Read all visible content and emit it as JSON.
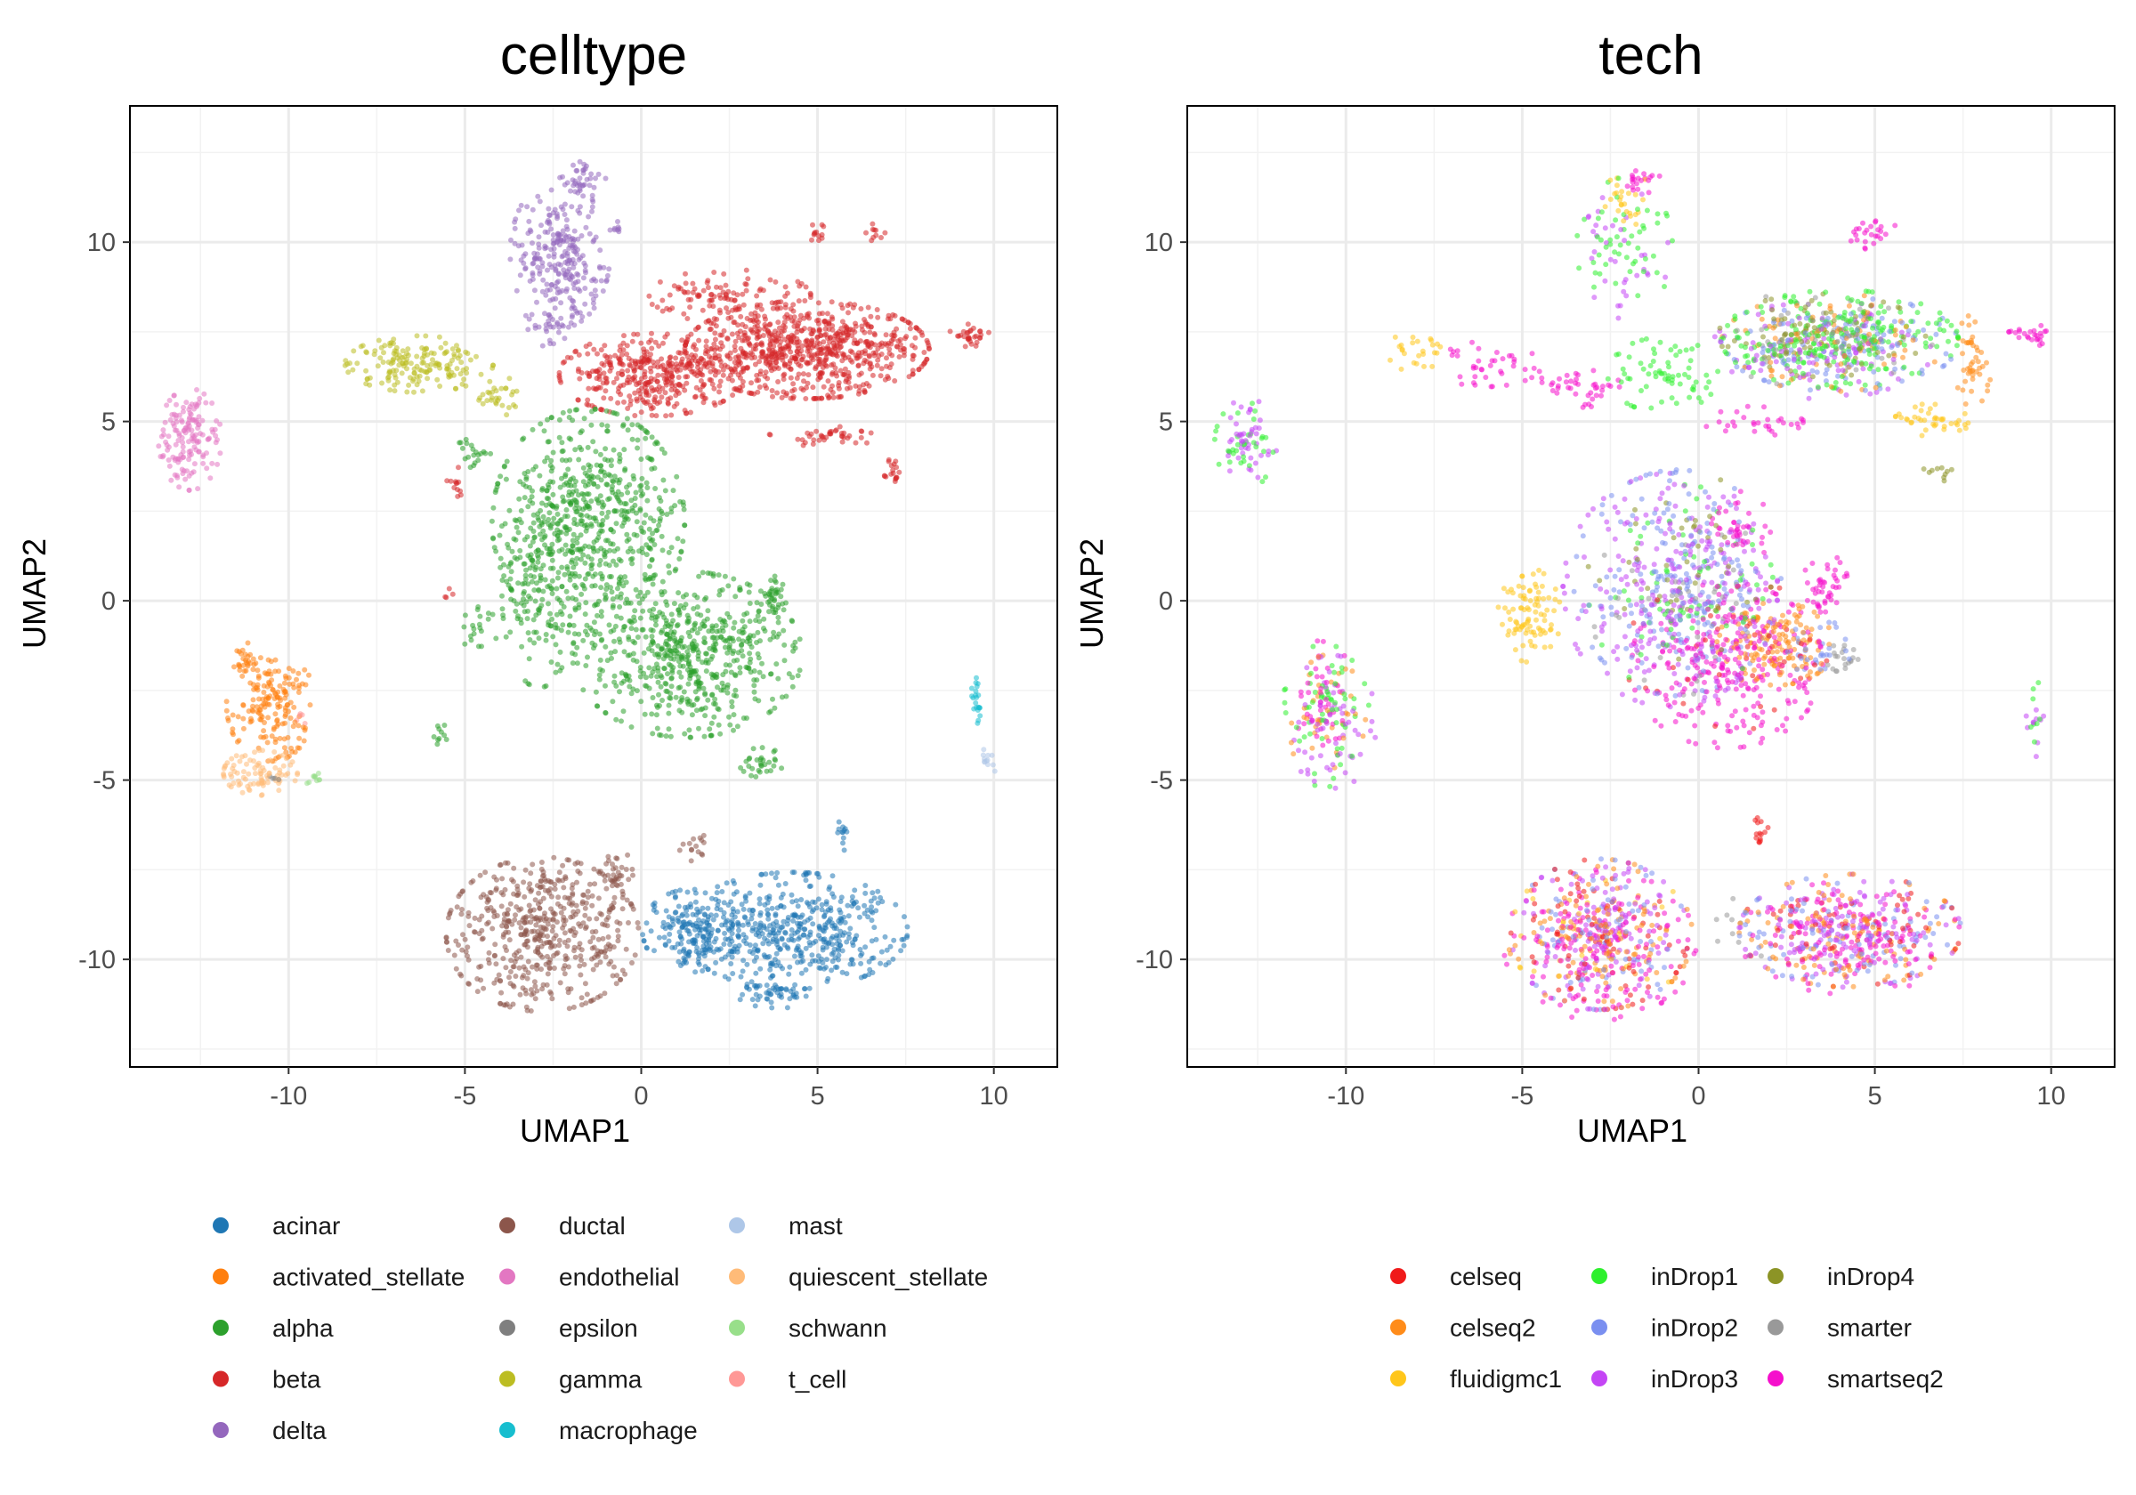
{
  "chart_data": [
    {
      "type": "scatter",
      "title": "celltype",
      "xlabel": "UMAP1",
      "ylabel": "UMAP2",
      "xlim": [
        -14.5,
        11.8
      ],
      "ylim": [
        -13.0,
        13.8
      ],
      "xticks": [
        -10,
        -5,
        0,
        5,
        10
      ],
      "yticks": [
        -10,
        -5,
        0,
        5,
        10
      ],
      "xtick_labels": [
        "-10",
        "-5",
        "0",
        "5",
        "10"
      ],
      "ytick_labels": [
        "-10",
        "-5",
        "0",
        "5",
        "10"
      ],
      "grid": true,
      "legend_position": "bottom",
      "legend_columns": 3,
      "series": [
        {
          "name": "acinar",
          "color": "#1f77b4",
          "clusters": [
            {
              "cx": 4.3,
              "cy": -9.2,
              "rx": 3.1,
              "ry": 1.55,
              "n": 500
            },
            {
              "cx": 1.4,
              "cy": -9.2,
              "rx": 1.3,
              "ry": 1.1,
              "n": 160
            },
            {
              "cx": 5.7,
              "cy": -6.5,
              "rx": 0.2,
              "ry": 0.45,
              "n": 12
            },
            {
              "cx": 3.8,
              "cy": -11.0,
              "rx": 1.0,
              "ry": 0.35,
              "n": 40
            }
          ]
        },
        {
          "name": "activated_stellate",
          "color": "#ff7f0e",
          "clusters": [
            {
              "cx": -10.5,
              "cy": -2.9,
              "rx": 1.2,
              "ry": 1.5,
              "n": 170
            },
            {
              "cx": -11.2,
              "cy": -1.6,
              "rx": 0.4,
              "ry": 0.5,
              "n": 25
            }
          ]
        },
        {
          "name": "alpha",
          "color": "#2ca02c",
          "clusters": [
            {
              "cx": -1.5,
              "cy": 2.2,
              "rx": 2.6,
              "ry": 3.0,
              "n": 650
            },
            {
              "cx": 1.3,
              "cy": -1.5,
              "rx": 3.1,
              "ry": 2.2,
              "n": 600
            },
            {
              "cx": -2.9,
              "cy": 0.2,
              "rx": 1.0,
              "ry": 2.5,
              "n": 130
            },
            {
              "cx": 3.7,
              "cy": -0.1,
              "rx": 0.4,
              "ry": 0.8,
              "n": 40
            },
            {
              "cx": 3.4,
              "cy": -4.5,
              "rx": 0.6,
              "ry": 0.4,
              "n": 30
            },
            {
              "cx": -4.6,
              "cy": -0.8,
              "rx": 0.5,
              "ry": 0.6,
              "n": 20
            },
            {
              "cx": -4.8,
              "cy": 4.1,
              "rx": 0.5,
              "ry": 0.4,
              "n": 20
            },
            {
              "cx": -5.7,
              "cy": -3.7,
              "rx": 0.25,
              "ry": 0.3,
              "n": 10
            }
          ]
        },
        {
          "name": "beta",
          "color": "#d62728",
          "clusters": [
            {
              "cx": 4.7,
              "cy": 7.0,
              "rx": 3.3,
              "ry": 1.3,
              "n": 750
            },
            {
              "cx": 0.3,
              "cy": 6.3,
              "rx": 2.5,
              "ry": 1.1,
              "n": 380
            },
            {
              "cx": 2.5,
              "cy": 8.5,
              "rx": 2.2,
              "ry": 0.7,
              "n": 100
            },
            {
              "cx": 5.2,
              "cy": 4.6,
              "rx": 1.5,
              "ry": 0.3,
              "n": 40
            },
            {
              "cx": 9.3,
              "cy": 7.4,
              "rx": 0.55,
              "ry": 0.3,
              "n": 30
            },
            {
              "cx": 5.0,
              "cy": 10.3,
              "rx": 0.4,
              "ry": 0.3,
              "n": 12
            },
            {
              "cx": 6.6,
              "cy": 10.3,
              "rx": 0.3,
              "ry": 0.3,
              "n": 10
            },
            {
              "cx": 7.1,
              "cy": 3.6,
              "rx": 0.3,
              "ry": 0.35,
              "n": 18
            },
            {
              "cx": -5.2,
              "cy": 3.3,
              "rx": 0.3,
              "ry": 0.4,
              "n": 12
            },
            {
              "cx": -5.5,
              "cy": 0.2,
              "rx": 0.15,
              "ry": 0.2,
              "n": 4
            }
          ]
        },
        {
          "name": "delta",
          "color": "#9467bd",
          "clusters": [
            {
              "cx": -2.3,
              "cy": 9.7,
              "rx": 1.35,
              "ry": 2.0,
              "n": 260
            },
            {
              "cx": -1.5,
              "cy": 11.8,
              "rx": 0.7,
              "ry": 0.5,
              "n": 30
            },
            {
              "cx": -2.5,
              "cy": 7.7,
              "rx": 0.8,
              "ry": 0.6,
              "n": 30
            },
            {
              "cx": -0.7,
              "cy": 10.4,
              "rx": 0.25,
              "ry": 0.2,
              "n": 8
            }
          ]
        },
        {
          "name": "ductal",
          "color": "#8c564b",
          "clusters": [
            {
              "cx": -2.8,
              "cy": -9.3,
              "rx": 2.6,
              "ry": 2.05,
              "n": 520
            },
            {
              "cx": -0.7,
              "cy": -7.6,
              "rx": 0.5,
              "ry": 0.6,
              "n": 30
            },
            {
              "cx": 1.5,
              "cy": -6.8,
              "rx": 0.4,
              "ry": 0.6,
              "n": 15
            }
          ]
        },
        {
          "name": "endothelial",
          "color": "#e377c2",
          "clusters": [
            {
              "cx": -12.8,
              "cy": 4.5,
              "rx": 0.85,
              "ry": 1.35,
              "n": 150
            }
          ]
        },
        {
          "name": "epsilon",
          "color": "#7f7f7f",
          "clusters": [
            {
              "cx": -10.4,
              "cy": -4.9,
              "rx": 0.2,
              "ry": 0.2,
              "n": 4
            }
          ]
        },
        {
          "name": "gamma",
          "color": "#bcbd22",
          "clusters": [
            {
              "cx": -6.3,
              "cy": 6.6,
              "rx": 2.0,
              "ry": 0.75,
              "n": 170
            },
            {
              "cx": -4.0,
              "cy": 5.7,
              "rx": 0.8,
              "ry": 0.5,
              "n": 30
            }
          ]
        },
        {
          "name": "macrophage",
          "color": "#17becf",
          "clusters": [
            {
              "cx": 9.5,
              "cy": -2.7,
              "rx": 0.15,
              "ry": 0.7,
              "n": 22
            }
          ]
        },
        {
          "name": "mast",
          "color": "#aec7e8",
          "clusters": [
            {
              "cx": 9.8,
              "cy": -4.5,
              "rx": 0.3,
              "ry": 0.35,
              "n": 12
            }
          ]
        },
        {
          "name": "quiescent_stellate",
          "color": "#ffbb78",
          "clusters": [
            {
              "cx": -10.8,
              "cy": -4.8,
              "rx": 1.0,
              "ry": 0.6,
              "n": 90
            }
          ]
        },
        {
          "name": "schwann",
          "color": "#98df8a",
          "clusters": [
            {
              "cx": -9.3,
              "cy": -5.0,
              "rx": 0.3,
              "ry": 0.25,
              "n": 10
            }
          ]
        },
        {
          "name": "t_cell",
          "color": "#ff9896",
          "clusters": [
            {
              "cx": -9.6,
              "cy": -3.3,
              "rx": 0.2,
              "ry": 0.2,
              "n": 5
            }
          ]
        }
      ]
    },
    {
      "type": "scatter",
      "title": "tech",
      "xlabel": "UMAP1",
      "ylabel": "UMAP2",
      "xlim": [
        -14.5,
        11.8
      ],
      "ylim": [
        -13.0,
        13.8
      ],
      "xticks": [
        -10,
        -5,
        0,
        5,
        10
      ],
      "yticks": [
        -10,
        -5,
        0,
        5,
        10
      ],
      "xtick_labels": [
        "-10",
        "-5",
        "0",
        "5",
        "10"
      ],
      "ytick_labels": [
        "-10",
        "-5",
        "0",
        "5",
        "10"
      ],
      "grid": true,
      "legend_position": "bottom",
      "legend_columns": 3,
      "series": [
        {
          "name": "celseq",
          "color": "#f01a1a",
          "clusters": [
            {
              "cx": 1.7,
              "cy": -6.5,
              "rx": 0.3,
              "ry": 0.5,
              "n": 14
            },
            {
              "cx": -2.8,
              "cy": -9.3,
              "rx": 2.4,
              "ry": 2.0,
              "n": 80
            },
            {
              "cx": 4.3,
              "cy": -9.2,
              "rx": 3.0,
              "ry": 1.5,
              "n": 60
            },
            {
              "cx": 1.0,
              "cy": -1.5,
              "rx": 3.0,
              "ry": 2.0,
              "n": 40
            }
          ]
        },
        {
          "name": "celseq2",
          "color": "#ff8c1a",
          "clusters": [
            {
              "cx": 2.2,
              "cy": -1.2,
              "rx": 1.6,
              "ry": 1.1,
              "n": 140
            },
            {
              "cx": -2.8,
              "cy": -9.3,
              "rx": 2.5,
              "ry": 2.0,
              "n": 120
            },
            {
              "cx": 4.3,
              "cy": -9.2,
              "rx": 3.0,
              "ry": 1.5,
              "n": 110
            },
            {
              "cx": 7.8,
              "cy": 6.6,
              "rx": 0.5,
              "ry": 1.4,
              "n": 45
            },
            {
              "cx": -10.6,
              "cy": -3.2,
              "rx": 1.1,
              "ry": 1.6,
              "n": 40
            },
            {
              "cx": 3.8,
              "cy": 7.2,
              "rx": 3.0,
              "ry": 1.3,
              "n": 80
            }
          ]
        },
        {
          "name": "fluidigmc1",
          "color": "#ffc61a",
          "clusters": [
            {
              "cx": -4.8,
              "cy": -0.4,
              "rx": 0.85,
              "ry": 1.25,
              "n": 90
            },
            {
              "cx": 6.6,
              "cy": 5.0,
              "rx": 1.0,
              "ry": 0.5,
              "n": 40
            },
            {
              "cx": -8.0,
              "cy": 7.0,
              "rx": 0.8,
              "ry": 0.6,
              "n": 25
            },
            {
              "cx": -2.0,
              "cy": 11.2,
              "rx": 0.7,
              "ry": 0.7,
              "n": 25
            },
            {
              "cx": -2.8,
              "cy": -9.3,
              "rx": 2.4,
              "ry": 2.0,
              "n": 30
            }
          ]
        },
        {
          "name": "inDrop1",
          "color": "#2ef02e",
          "clusters": [
            {
              "cx": 4.0,
              "cy": 7.3,
              "rx": 3.2,
              "ry": 1.3,
              "n": 230
            },
            {
              "cx": -1.0,
              "cy": 6.3,
              "rx": 1.5,
              "ry": 1.0,
              "n": 70
            },
            {
              "cx": -10.6,
              "cy": -3.2,
              "rx": 1.2,
              "ry": 1.9,
              "n": 60
            },
            {
              "cx": -12.9,
              "cy": 4.3,
              "rx": 0.8,
              "ry": 1.2,
              "n": 35
            },
            {
              "cx": -2.1,
              "cy": 9.8,
              "rx": 1.3,
              "ry": 1.9,
              "n": 50
            },
            {
              "cx": -0.5,
              "cy": 0.3,
              "rx": 2.5,
              "ry": 2.8,
              "n": 70
            },
            {
              "cx": 9.5,
              "cy": -3.0,
              "rx": 0.2,
              "ry": 0.9,
              "n": 8
            }
          ]
        },
        {
          "name": "inDrop2",
          "color": "#7a8ff0",
          "clusters": [
            {
              "cx": -0.6,
              "cy": 0.5,
              "rx": 2.8,
              "ry": 3.0,
              "n": 200
            },
            {
              "cx": 4.0,
              "cy": 7.2,
              "rx": 3.2,
              "ry": 1.3,
              "n": 130
            },
            {
              "cx": 4.3,
              "cy": -9.2,
              "rx": 3.0,
              "ry": 1.5,
              "n": 90
            },
            {
              "cx": -2.8,
              "cy": -9.3,
              "rx": 2.4,
              "ry": 2.0,
              "n": 80
            },
            {
              "cx": 3.3,
              "cy": -1.3,
              "rx": 1.0,
              "ry": 0.8,
              "n": 30
            }
          ]
        },
        {
          "name": "inDrop3",
          "color": "#c445f5",
          "clusters": [
            {
              "cx": -0.8,
              "cy": 0.3,
              "rx": 2.9,
              "ry": 3.1,
              "n": 260
            },
            {
              "cx": 4.3,
              "cy": -9.2,
              "rx": 3.0,
              "ry": 1.5,
              "n": 130
            },
            {
              "cx": -2.8,
              "cy": -9.3,
              "rx": 2.4,
              "ry": 2.0,
              "n": 110
            },
            {
              "cx": -12.8,
              "cy": 4.4,
              "rx": 0.8,
              "ry": 1.2,
              "n": 45
            },
            {
              "cx": -10.4,
              "cy": -3.4,
              "rx": 1.2,
              "ry": 1.8,
              "n": 60
            },
            {
              "cx": 3.5,
              "cy": 7.0,
              "rx": 3.0,
              "ry": 1.3,
              "n": 100
            },
            {
              "cx": -2.1,
              "cy": 9.6,
              "rx": 1.2,
              "ry": 1.8,
              "n": 35
            },
            {
              "cx": 9.6,
              "cy": -3.5,
              "rx": 0.3,
              "ry": 1.2,
              "n": 10
            }
          ]
        },
        {
          "name": "inDrop4",
          "color": "#8c9426",
          "clusters": [
            {
              "cx": 3.5,
              "cy": 7.4,
              "rx": 2.8,
              "ry": 1.1,
              "n": 90
            },
            {
              "cx": -0.5,
              "cy": 1.0,
              "rx": 2.5,
              "ry": 2.5,
              "n": 50
            },
            {
              "cx": 6.8,
              "cy": 3.6,
              "rx": 0.4,
              "ry": 0.35,
              "n": 10
            }
          ]
        },
        {
          "name": "smarter",
          "color": "#999999",
          "clusters": [
            {
              "cx": 4.0,
              "cy": -1.6,
              "rx": 0.5,
              "ry": 0.35,
              "n": 20
            },
            {
              "cx": 3.5,
              "cy": 7.3,
              "rx": 3.0,
              "ry": 1.3,
              "n": 50
            },
            {
              "cx": -0.5,
              "cy": 0.0,
              "rx": 2.5,
              "ry": 2.5,
              "n": 40
            },
            {
              "cx": 1.0,
              "cy": -9.2,
              "rx": 1.0,
              "ry": 1.0,
              "n": 10
            }
          ]
        },
        {
          "name": "smartseq2",
          "color": "#f50fcc",
          "clusters": [
            {
              "cx": 0.8,
              "cy": -1.8,
              "rx": 2.6,
              "ry": 2.2,
              "n": 260
            },
            {
              "cx": -2.8,
              "cy": -9.6,
              "rx": 2.6,
              "ry": 2.0,
              "n": 170
            },
            {
              "cx": 4.3,
              "cy": -9.4,
              "rx": 3.0,
              "ry": 1.5,
              "n": 150
            },
            {
              "cx": 3.6,
              "cy": 0.5,
              "rx": 0.6,
              "ry": 0.8,
              "n": 45
            },
            {
              "cx": 5.0,
              "cy": 10.2,
              "rx": 0.7,
              "ry": 0.4,
              "n": 25
            },
            {
              "cx": 9.4,
              "cy": 7.4,
              "rx": 0.6,
              "ry": 0.3,
              "n": 25
            },
            {
              "cx": -3.5,
              "cy": 6.0,
              "rx": 1.2,
              "ry": 0.6,
              "n": 40
            },
            {
              "cx": -10.8,
              "cy": -2.8,
              "rx": 1.1,
              "ry": 1.6,
              "n": 40
            },
            {
              "cx": -6.0,
              "cy": 6.6,
              "rx": 1.5,
              "ry": 0.6,
              "n": 40
            },
            {
              "cx": 1.2,
              "cy": 2.0,
              "rx": 0.8,
              "ry": 1.0,
              "n": 40
            },
            {
              "cx": 1.5,
              "cy": 5.0,
              "rx": 1.4,
              "ry": 0.4,
              "n": 30
            },
            {
              "cx": -1.5,
              "cy": 11.8,
              "rx": 0.6,
              "ry": 0.4,
              "n": 20
            }
          ]
        }
      ]
    }
  ]
}
